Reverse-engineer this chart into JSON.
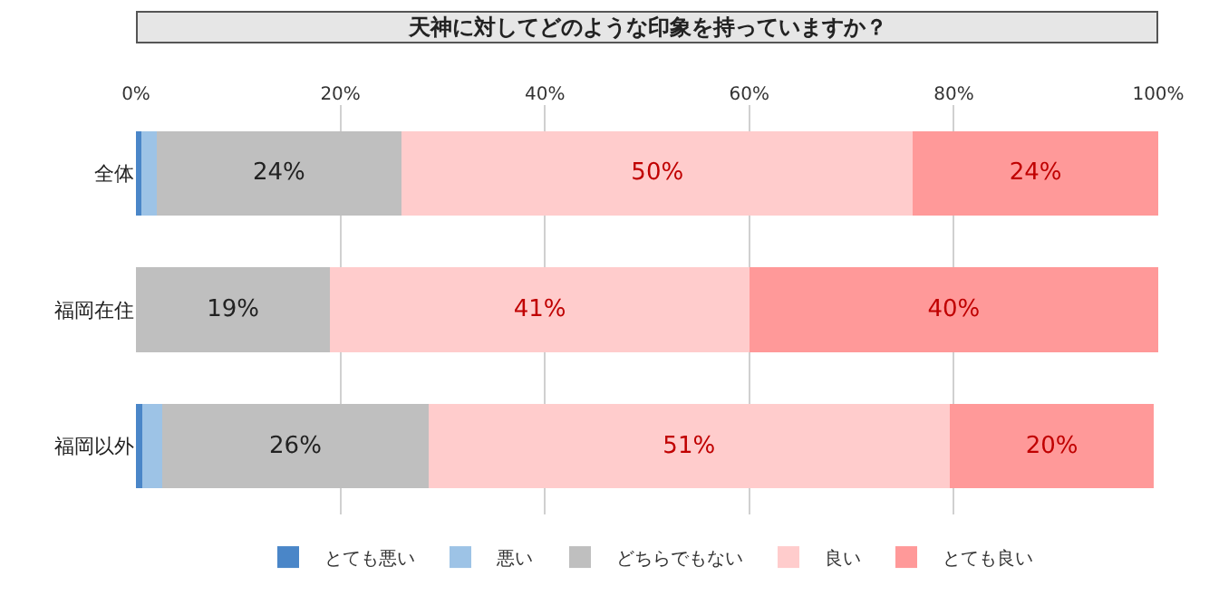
{
  "chart_data": {
    "type": "bar",
    "orientation": "horizontal",
    "stacked": true,
    "title": "天神に対してどのような印象を持っていますか？",
    "categories": [
      "全体",
      "福岡在住",
      "福岡以外"
    ],
    "series": [
      {
        "name": "とても悪い",
        "color": "#4a86c8",
        "values": [
          0.5,
          0,
          0.6
        ],
        "value_labels": [
          null,
          null,
          null
        ]
      },
      {
        "name": "悪い",
        "color": "#9dc3e6",
        "values": [
          1.5,
          0,
          2
        ],
        "value_labels": [
          null,
          null,
          null
        ]
      },
      {
        "name": "どちらでもない",
        "color": "#bfbfbf",
        "values": [
          24,
          19,
          26
        ],
        "value_labels": [
          "24%",
          "19%",
          "26%"
        ]
      },
      {
        "name": "良い",
        "color": "#ffcccc",
        "values": [
          50,
          41,
          51
        ],
        "value_labels": [
          "50%",
          "41%",
          "51%"
        ]
      },
      {
        "name": "とても良い",
        "color": "#ff9999",
        "values": [
          24,
          40,
          20
        ],
        "value_labels": [
          "24%",
          "40%",
          "20%"
        ]
      }
    ],
    "xlim": [
      0,
      100
    ],
    "xticks": [
      {
        "value": 0,
        "label": "0%"
      },
      {
        "value": 20,
        "label": "20%"
      },
      {
        "value": 40,
        "label": "40%"
      },
      {
        "value": 60,
        "label": "60%"
      },
      {
        "value": 80,
        "label": "80%"
      },
      {
        "value": 100,
        "label": "100%"
      }
    ],
    "grid": "x",
    "legend": "bottom"
  }
}
